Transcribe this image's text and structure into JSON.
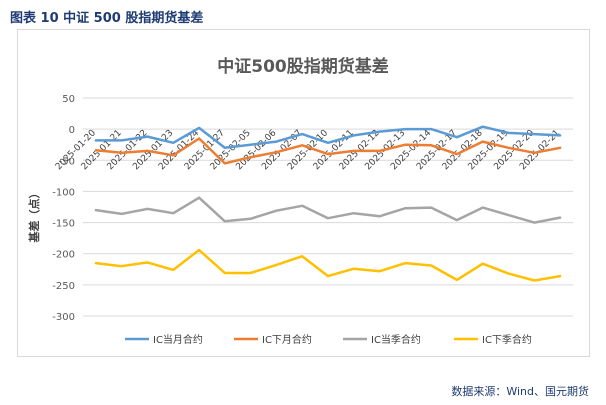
{
  "figure_label": "图表 10  中证 500 股指期货基差",
  "source": "数据来源：Wind、国元期货",
  "chart_data": {
    "type": "line",
    "title": "中证500股指期货基差",
    "ylabel": "基差（点）",
    "xlabel": "",
    "ylim": [
      -300,
      50
    ],
    "yticks": [
      50,
      0,
      -50,
      -100,
      -150,
      -200,
      -250,
      -300
    ],
    "x": [
      "2025-01-20",
      "2025-01-21",
      "2025-01-22",
      "2025-01-23",
      "2025-01-24",
      "2025-01-27",
      "2025-02-05",
      "2025-02-06",
      "2025-02-07",
      "2025-02-10",
      "2025-02-11",
      "2025-02-12",
      "2025-02-13",
      "2025-02-14",
      "2025-02-17",
      "2025-02-18",
      "2025-02-19",
      "2025-02-20",
      "2025-02-21"
    ],
    "x_tick_labels": [
      "2025-01-20",
      "2025-01-21",
      "2025-01-22",
      "2025-01-23",
      "2025-01-24",
      "2025-01-27",
      "2025-02-05",
      "2025-02-06",
      "2025-02-07",
      "2025-02-10",
      "2025-02-11",
      "2025-02-12",
      "2025-02-13",
      "2025-02-14",
      "2025-02-17",
      "2025-02-18",
      "2025-02-19",
      "2025-02-20",
      "2025-02-21"
    ],
    "grid": true,
    "legend_position": "bottom",
    "series": [
      {
        "name": "IC当月合约",
        "color": "#5b9bd5",
        "values": [
          -18,
          -18,
          -12,
          -22,
          2,
          -30,
          -25,
          -20,
          -8,
          -22,
          -10,
          -4,
          0,
          0,
          -13,
          4,
          -6,
          -8,
          -10
        ]
      },
      {
        "name": "IC下月合约",
        "color": "#ed7d31",
        "values": [
          -34,
          -38,
          -35,
          -42,
          -15,
          -55,
          -45,
          -37,
          -26,
          -40,
          -35,
          -35,
          -25,
          -26,
          -40,
          -20,
          -30,
          -38,
          -30
        ]
      },
      {
        "name": "IC当季合约",
        "color": "#a5a5a5",
        "values": [
          -130,
          -136,
          -128,
          -135,
          -110,
          -148,
          -144,
          -131,
          -123,
          -143,
          -135,
          -140,
          -127,
          -126,
          -146,
          -126,
          -138,
          -150,
          -142
        ]
      },
      {
        "name": "IC下季合约",
        "color": "#ffc000",
        "values": [
          -215,
          -220,
          -214,
          -226,
          -194,
          -231,
          -231,
          -218,
          -204,
          -236,
          -224,
          -228,
          -215,
          -219,
          -242,
          -216,
          -232,
          -243,
          -236
        ]
      }
    ]
  }
}
